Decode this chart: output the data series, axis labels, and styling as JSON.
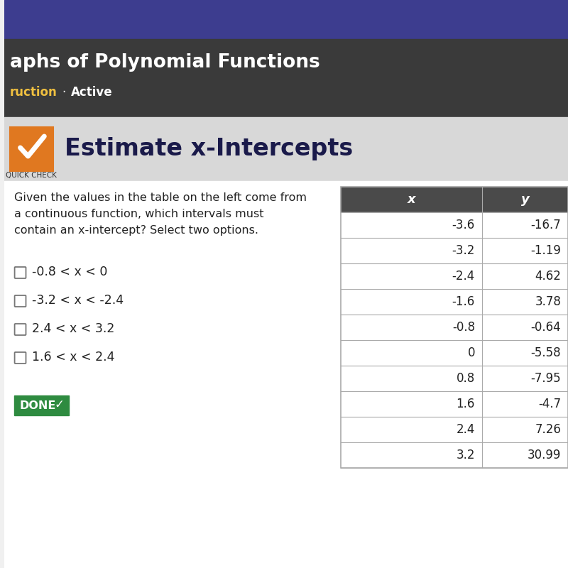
{
  "title_bar_text": "aphs of Polynomial Functions",
  "subtitle_text": "ruction",
  "subtitle_dot": "·",
  "subtitle_active": "Active",
  "section_title": "Estimate x-Intercepts",
  "quick_check_label": "QUICK CHECK",
  "question_text": "Given the values in the table on the left come from\na continuous function, which intervals must\ncontain an x-intercept? Select two options.",
  "options": [
    "-0.8 < x < 0",
    "-3.2 < x < -2.4",
    "2.4 < x < 3.2",
    "1.6 < x < 2.4"
  ],
  "done_button": "DONE",
  "table_headers": [
    "x",
    "y"
  ],
  "table_data": [
    [
      "-3.6",
      "-16.7"
    ],
    [
      "-3.2",
      "-1.19"
    ],
    [
      "-2.4",
      "4.62"
    ],
    [
      "-1.6",
      "3.78"
    ],
    [
      "-0.8",
      "-0.64"
    ],
    [
      "0",
      "-5.58"
    ],
    [
      "0.8",
      "-7.95"
    ],
    [
      "1.6",
      "-4.7"
    ],
    [
      "2.4",
      "7.26"
    ],
    [
      "3.2",
      "30.99"
    ]
  ],
  "top_bar_bg": "#3d3d8f",
  "nav_bar_bg": "#3a3a3a",
  "section_bg": "#d8d8d8",
  "body_bg": "#f0f0f0",
  "content_bg": "#ffffff",
  "table_header_bg": "#4a4a4a",
  "table_header_text": "#ffffff",
  "table_border": "#aaaaaa",
  "check_icon_bg": "#e07820",
  "check_border": "#c0c0c0",
  "section_title_color": "#1a1a4a",
  "done_bg": "#2e8b40",
  "done_text_color": "#ffffff",
  "text_color": "#222222",
  "subtitle_color": "#f0c040",
  "active_color": "#ffffff"
}
